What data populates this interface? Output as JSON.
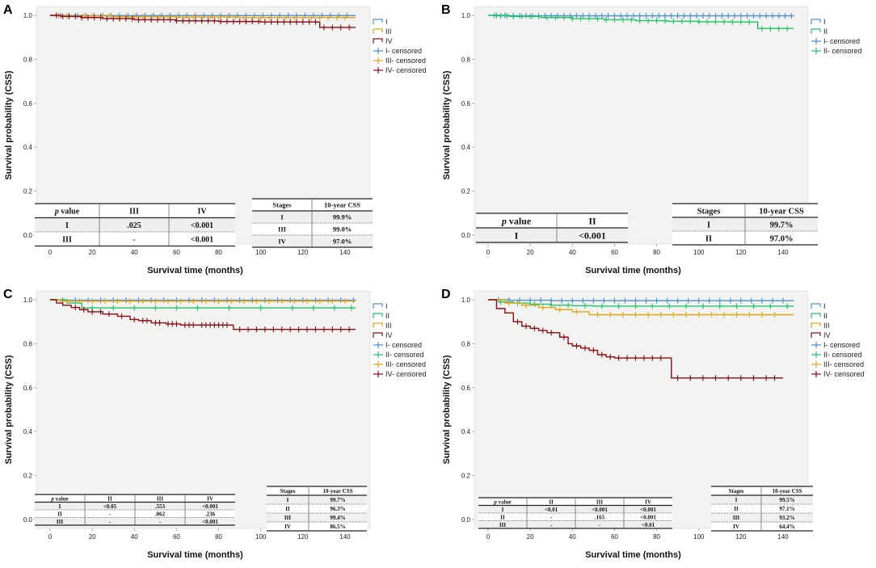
{
  "axes": {
    "xlabel": "Survival time (months)",
    "ylabel": "Survival probability (CSS)",
    "xticks": [
      "0",
      "20",
      "40",
      "60",
      "80",
      "100",
      "120",
      "140"
    ],
    "yticks": [
      "0.0",
      "0.2",
      "0.4",
      "0.6",
      "0.8",
      "1.0"
    ]
  },
  "colors": {
    "I": "#4f8fd0",
    "II": "#22c46a",
    "III": "#e1a51c",
    "IV": "#8b0d17"
  },
  "chart_data": [
    {
      "type": "line",
      "panel": "A",
      "xlabel": "Survival time (months)",
      "ylabel": "Survival probability (CSS)",
      "xlim": [
        0,
        145
      ],
      "ylim": [
        0,
        1
      ],
      "legend": [
        "I",
        "III",
        "IV",
        "I- censored",
        "III- censored",
        "IV- censored"
      ],
      "legend_placement": "right",
      "series": [
        {
          "name": "I",
          "color_key": "I",
          "x": [
            0,
            2,
            145
          ],
          "y": [
            1.0,
            0.999,
            0.999
          ],
          "censored": [
            5,
            9,
            13,
            17,
            21,
            25,
            29,
            33,
            37,
            41,
            45,
            49,
            53,
            57,
            61,
            65,
            69,
            73,
            77,
            81,
            85,
            89,
            93,
            97,
            101,
            105,
            109,
            113,
            117,
            121,
            125,
            129,
            133,
            137,
            141
          ]
        },
        {
          "name": "III",
          "color_key": "III",
          "x": [
            0,
            5,
            30,
            60,
            90,
            145
          ],
          "y": [
            1.0,
            0.997,
            0.994,
            0.992,
            0.99,
            0.99
          ],
          "censored": [
            4,
            8,
            12,
            16,
            20,
            24,
            28,
            32,
            36,
            40,
            44,
            48,
            52,
            56,
            60,
            64,
            68,
            72,
            76,
            80,
            84,
            88,
            92,
            96,
            100,
            104,
            108,
            112,
            116,
            120,
            124,
            128,
            132,
            136,
            140
          ]
        },
        {
          "name": "IV",
          "color_key": "IV",
          "x": [
            0,
            5,
            15,
            25,
            40,
            60,
            80,
            100,
            120,
            127,
            128,
            145
          ],
          "y": [
            1.0,
            0.995,
            0.99,
            0.985,
            0.98,
            0.975,
            0.972,
            0.97,
            0.97,
            0.97,
            0.945,
            0.945
          ],
          "censored": [
            3,
            6,
            9,
            12,
            15,
            18,
            21,
            24,
            27,
            30,
            33,
            36,
            39,
            42,
            45,
            48,
            51,
            54,
            57,
            60,
            63,
            66,
            69,
            72,
            75,
            78,
            81,
            84,
            87,
            90,
            93,
            96,
            99,
            102,
            105,
            108,
            111,
            114,
            117,
            120,
            123,
            126,
            130,
            134,
            138,
            142
          ]
        }
      ],
      "p_table": {
        "headers": [
          "p value",
          "III",
          "IV"
        ],
        "rows": [
          [
            "I",
            ".025",
            "<0.001"
          ],
          [
            "III",
            "-",
            "<0.001"
          ]
        ]
      },
      "css_table": {
        "headers": [
          "Stages",
          "10-year CSS"
        ],
        "rows": [
          [
            "I",
            "99.9%"
          ],
          [
            "III",
            "99.0%"
          ],
          [
            "IV",
            "97.0%"
          ]
        ]
      }
    },
    {
      "type": "line",
      "panel": "B",
      "xlabel": "Survival time (months)",
      "ylabel": "Survival probability (CSS)",
      "xlim": [
        0,
        145
      ],
      "ylim": [
        0,
        1
      ],
      "legend": [
        "I",
        "II",
        "I- censored",
        "II- censored"
      ],
      "legend_placement": "right",
      "series": [
        {
          "name": "I",
          "color_key": "I",
          "x": [
            0,
            5,
            145
          ],
          "y": [
            1.0,
            0.998,
            0.997
          ],
          "censored": [
            3,
            6,
            9,
            12,
            15,
            18,
            21,
            24,
            27,
            30,
            33,
            36,
            39,
            42,
            45,
            48,
            51,
            54,
            57,
            60,
            63,
            66,
            69,
            72,
            75,
            78,
            81,
            84,
            87,
            90,
            93,
            96,
            99,
            102,
            105,
            108,
            111,
            114,
            117,
            120,
            123,
            126,
            129,
            132,
            135,
            138,
            141,
            144
          ]
        },
        {
          "name": "II",
          "color_key": "II",
          "x": [
            0,
            10,
            25,
            40,
            55,
            70,
            85,
            100,
            115,
            127,
            128,
            145
          ],
          "y": [
            1.0,
            0.995,
            0.99,
            0.985,
            0.98,
            0.976,
            0.973,
            0.971,
            0.97,
            0.97,
            0.94,
            0.94
          ],
          "censored": [
            4,
            8,
            12,
            16,
            20,
            24,
            28,
            32,
            36,
            40,
            44,
            48,
            52,
            56,
            60,
            64,
            68,
            72,
            76,
            80,
            84,
            88,
            92,
            96,
            100,
            104,
            108,
            112,
            116,
            120,
            124,
            130,
            134,
            138,
            142
          ]
        }
      ],
      "p_table": {
        "headers": [
          "p value",
          "II"
        ],
        "rows": [
          [
            "I",
            "<0.001"
          ]
        ]
      },
      "css_table": {
        "headers": [
          "Stages",
          "10-year CSS"
        ],
        "rows": [
          [
            "I",
            "99.7%"
          ],
          [
            "II",
            "97.0%"
          ]
        ]
      }
    },
    {
      "type": "line",
      "panel": "C",
      "xlabel": "Survival time (months)",
      "ylabel": "Survival probability (CSS)",
      "xlim": [
        0,
        145
      ],
      "ylim": [
        0,
        1
      ],
      "legend": [
        "I",
        "II",
        "III",
        "IV",
        "I- censored",
        "II- censored",
        "III- censored",
        "IV- censored"
      ],
      "legend_placement": "right",
      "series": [
        {
          "name": "I",
          "color_key": "I",
          "x": [
            0,
            3,
            145
          ],
          "y": [
            1.0,
            0.998,
            0.997
          ],
          "censored": [
            6,
            12,
            18,
            24,
            30,
            36,
            42,
            48,
            54,
            60,
            66,
            72,
            78,
            84,
            90,
            96,
            102,
            108,
            114,
            120,
            126,
            132,
            138,
            144
          ]
        },
        {
          "name": "II",
          "color_key": "II",
          "x": [
            0,
            8,
            15,
            145
          ],
          "y": [
            1.0,
            0.985,
            0.963,
            0.963
          ],
          "censored": [
            20,
            30,
            40,
            50,
            60,
            70,
            85,
            100,
            115,
            125,
            135,
            143
          ]
        },
        {
          "name": "III",
          "color_key": "III",
          "x": [
            0,
            5,
            145
          ],
          "y": [
            1.0,
            0.994,
            0.994
          ],
          "censored": [
            8,
            14,
            20,
            26,
            32,
            38,
            44,
            50,
            56,
            62,
            68,
            74,
            80,
            86,
            92,
            98,
            104,
            110,
            116,
            122,
            128,
            134,
            140
          ]
        },
        {
          "name": "IV",
          "color_key": "IV",
          "x": [
            0,
            3,
            6,
            10,
            14,
            18,
            25,
            32,
            38,
            42,
            48,
            55,
            62,
            70,
            86,
            87,
            145
          ],
          "y": [
            1.0,
            0.985,
            0.975,
            0.965,
            0.955,
            0.945,
            0.935,
            0.925,
            0.91,
            0.905,
            0.895,
            0.89,
            0.885,
            0.885,
            0.885,
            0.865,
            0.865
          ],
          "censored": [
            12,
            16,
            20,
            24,
            28,
            34,
            40,
            44,
            46,
            50,
            52,
            56,
            58,
            60,
            64,
            66,
            68,
            72,
            74,
            76,
            78,
            80,
            82,
            84,
            90,
            94,
            98,
            102,
            106,
            110,
            114,
            118,
            122,
            126,
            130,
            134,
            138,
            142
          ]
        }
      ],
      "p_table": {
        "headers": [
          "p value",
          "II",
          "III",
          "IV"
        ],
        "rows": [
          [
            "I",
            "<0.05",
            ".553",
            "<0.001"
          ],
          [
            "II",
            "-",
            ".062",
            ".236"
          ],
          [
            "III",
            "-",
            "-",
            "<0.001"
          ]
        ]
      },
      "css_table": {
        "headers": [
          "Stages",
          "10-year CSS"
        ],
        "rows": [
          [
            "I",
            "99.7%"
          ],
          [
            "II",
            "96.3%"
          ],
          [
            "III",
            "99.4%"
          ],
          [
            "IV",
            "86.5%"
          ]
        ]
      }
    },
    {
      "type": "line",
      "panel": "D",
      "xlabel": "Survival time (months)",
      "ylabel": "Survival probability (CSS)",
      "xlim": [
        0,
        145
      ],
      "ylim": [
        0,
        1
      ],
      "legend": [
        "I",
        "II",
        "III",
        "IV",
        "I- censored",
        "II- censored",
        "III- censored",
        "IV- censored"
      ],
      "legend_placement": "right",
      "series": [
        {
          "name": "I",
          "color_key": "I",
          "x": [
            0,
            10,
            30,
            145
          ],
          "y": [
            1.0,
            0.998,
            0.996,
            0.995
          ],
          "censored": [
            5,
            10,
            15,
            20,
            25,
            30,
            35,
            40,
            45,
            50,
            55,
            60,
            65,
            70,
            75,
            80,
            85,
            90,
            95,
            100,
            105,
            110,
            115,
            120,
            125,
            130,
            135,
            140
          ]
        },
        {
          "name": "II",
          "color_key": "II",
          "x": [
            0,
            5,
            12,
            20,
            30,
            40,
            50,
            60,
            145
          ],
          "y": [
            1.0,
            0.99,
            0.985,
            0.98,
            0.975,
            0.973,
            0.971,
            0.971,
            0.971
          ],
          "censored": [
            6,
            14,
            22,
            30,
            38,
            46,
            54,
            62,
            70,
            78,
            86,
            94,
            102,
            110,
            118,
            126,
            134,
            142
          ]
        },
        {
          "name": "III",
          "color_key": "III",
          "x": [
            0,
            8,
            16,
            24,
            32,
            40,
            48,
            145
          ],
          "y": [
            1.0,
            0.985,
            0.975,
            0.965,
            0.955,
            0.945,
            0.932,
            0.932
          ],
          "censored": [
            10,
            18,
            26,
            34,
            42,
            52,
            58,
            64,
            70,
            76,
            82,
            88,
            94,
            100,
            106,
            112,
            118,
            124,
            130,
            136
          ]
        },
        {
          "name": "IV",
          "color_key": "IV",
          "x": [
            0,
            4,
            8,
            12,
            16,
            20,
            24,
            28,
            34,
            38,
            40,
            44,
            48,
            52,
            56,
            60,
            70,
            86,
            87,
            140
          ],
          "y": [
            1.0,
            0.96,
            0.94,
            0.9,
            0.88,
            0.87,
            0.86,
            0.85,
            0.83,
            0.8,
            0.79,
            0.78,
            0.77,
            0.75,
            0.74,
            0.735,
            0.735,
            0.735,
            0.644,
            0.644
          ],
          "censored": [
            14,
            18,
            22,
            26,
            30,
            36,
            42,
            46,
            50,
            54,
            58,
            62,
            66,
            70,
            74,
            78,
            82,
            90,
            96,
            102,
            108,
            114,
            120,
            126,
            132,
            136
          ]
        }
      ],
      "p_table": {
        "headers": [
          "p value",
          "II",
          "III",
          "IV"
        ],
        "rows": [
          [
            "I",
            "<0.01",
            "<0.001",
            "<0.001"
          ],
          [
            "II",
            "-",
            ".165",
            "<0.001"
          ],
          [
            "III",
            "-",
            "-",
            "<0.01"
          ]
        ]
      },
      "css_table": {
        "headers": [
          "Stages",
          "10-year CSS"
        ],
        "rows": [
          [
            "I",
            "99.5%"
          ],
          [
            "II",
            "97.1%"
          ],
          [
            "III",
            "93.2%"
          ],
          [
            "IV",
            "64.4%"
          ]
        ]
      }
    }
  ]
}
